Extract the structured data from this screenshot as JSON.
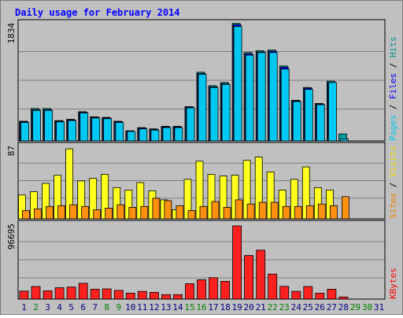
{
  "chart_data": {
    "type": "bar",
    "title": "Daily usage for February 2014",
    "categories": [
      "1",
      "2",
      "3",
      "4",
      "5",
      "6",
      "7",
      "8",
      "9",
      "10",
      "11",
      "12",
      "13",
      "14",
      "15",
      "16",
      "17",
      "18",
      "19",
      "20",
      "21",
      "22",
      "23",
      "24",
      "25",
      "26",
      "27",
      "28",
      "29",
      "30",
      "31"
    ],
    "weekend_days": [
      "2",
      "8",
      "9",
      "15",
      "16",
      "22",
      "23",
      "29",
      "30"
    ],
    "panels": [
      {
        "id": "pages-files-hits",
        "max_label": "1834",
        "ymax": 1834,
        "right_labels": [
          {
            "text": "Pages",
            "color": "#00c8f0"
          },
          {
            "text": " / ",
            "color": "#000000"
          },
          {
            "text": "Files",
            "color": "#0000ff"
          },
          {
            "text": " / ",
            "color": "#000000"
          },
          {
            "text": "Hits",
            "color": "#009090"
          }
        ],
        "series": [
          {
            "name": "Hits",
            "color": "#00a0a0",
            "values": [
              310,
              510,
              510,
              320,
              340,
              460,
              380,
              370,
              310,
              160,
              210,
              190,
              230,
              230,
              540,
              1080,
              870,
              920,
              1850,
              1390,
              1420,
              1430,
              1180,
              640,
              840,
              590,
              940,
              110,
              0,
              0,
              0
            ]
          },
          {
            "name": "Files",
            "color": "#0000ff",
            "values": [
              300,
              490,
              490,
              310,
              330,
              450,
              370,
              360,
              300,
              150,
              200,
              180,
              220,
              220,
              530,
              1060,
              850,
              900,
              1830,
              1370,
              1400,
              1410,
              1160,
              630,
              830,
              580,
              920,
              0,
              0,
              0,
              0
            ]
          },
          {
            "name": "Pages",
            "color": "#00c8f0",
            "values": [
              290,
              480,
              480,
              300,
              320,
              440,
              360,
              350,
              290,
              150,
              190,
              170,
              210,
              210,
              520,
              1050,
              840,
              890,
              1800,
              1350,
              1390,
              1390,
              1130,
              620,
              810,
              570,
              920,
              30,
              0,
              0,
              0
            ]
          }
        ]
      },
      {
        "id": "sites-visits",
        "max_label": "87",
        "ymax": 87,
        "right_labels": [
          {
            "text": "Sites",
            "color": "#f08000"
          },
          {
            "text": " / ",
            "color": "#000000"
          },
          {
            "text": "Visits",
            "color": "#f0e000"
          }
        ],
        "series": [
          {
            "name": "Visits",
            "color": "#ffff20",
            "values": [
              29,
              33,
              43,
              53,
              85,
              46,
              49,
              54,
              38,
              35,
              44,
              34,
              23,
              11,
              48,
              70,
              54,
              52,
              53,
              71,
              75,
              57,
              35,
              48,
              63,
              38,
              35,
              0,
              0,
              0,
              0
            ]
          },
          {
            "name": "Sites",
            "color": "#ff9010",
            "values": [
              10,
              12,
              15,
              16,
              17,
              15,
              11,
              13,
              17,
              14,
              15,
              25,
              22,
              16,
              10,
              15,
              21,
              14,
              23,
              18,
              20,
              20,
              15,
              15,
              16,
              18,
              16,
              27,
              0,
              0,
              0
            ]
          }
        ]
      },
      {
        "id": "kbytes",
        "max_label": "96695",
        "ymax": 96695,
        "right_labels": [
          {
            "text": "KBytes",
            "color": "#ff0000"
          }
        ],
        "series": [
          {
            "name": "KBytes",
            "color": "#ff2020",
            "values": [
              10500,
              16500,
              10800,
              14900,
              15700,
              20700,
              13000,
              13400,
              11400,
              7800,
              10100,
              8800,
              5900,
              5900,
              20200,
              25300,
              28000,
              23200,
              95700,
              57000,
              64000,
              32700,
              16700,
              10200,
              16500,
              7800,
              13000,
              2800,
              0,
              0,
              0
            ]
          }
        ]
      }
    ]
  }
}
